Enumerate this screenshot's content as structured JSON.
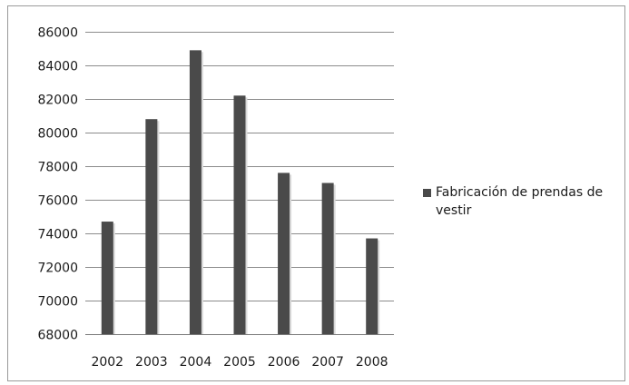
{
  "chart_data": {
    "type": "bar",
    "title": "",
    "xlabel": "",
    "ylabel": "",
    "categories": [
      "2002",
      "2003",
      "2004",
      "2005",
      "2006",
      "2007",
      "2008"
    ],
    "series": [
      {
        "name": "Fabricación de prendas de vestir",
        "values": [
          74700,
          80800,
          84900,
          82200,
          77600,
          77000,
          73700
        ],
        "color": "#4a4a4a"
      }
    ],
    "ylim": [
      68000,
      86000
    ],
    "yticks": [
      "68000",
      "70000",
      "72000",
      "74000",
      "76000",
      "78000",
      "80000",
      "82000",
      "84000",
      "86000"
    ],
    "grid": true,
    "legend_position": "right"
  }
}
